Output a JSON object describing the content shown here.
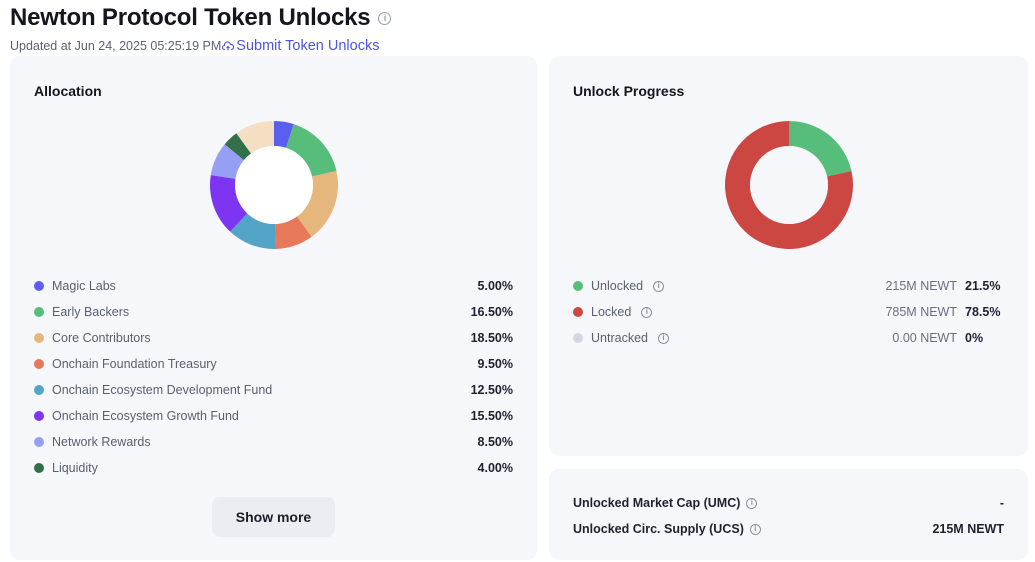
{
  "header": {
    "title": "Newton Protocol Token Unlocks",
    "info_icon": "info-circle-icon",
    "updated": "Updated at Jun 24, 2025 05:25:19 PM",
    "submit_icon": "cloud-upload-icon",
    "submit_label": "Submit Token Unlocks"
  },
  "allocation": {
    "title": "Allocation",
    "items": [
      {
        "label": "Magic Labs",
        "value": "5.00%",
        "pct": 5.0,
        "color": "#5b5ff0"
      },
      {
        "label": "Early Backers",
        "value": "16.50%",
        "pct": 16.5,
        "color": "#57bd7b"
      },
      {
        "label": "Core Contributors",
        "value": "18.50%",
        "pct": 18.5,
        "color": "#e6b77d"
      },
      {
        "label": "Onchain Foundation Treasury",
        "value": "9.50%",
        "pct": 9.5,
        "color": "#e7785a"
      },
      {
        "label": "Onchain Ecosystem Development Fund",
        "value": "12.50%",
        "pct": 12.5,
        "color": "#53a4c6"
      },
      {
        "label": "Onchain Ecosystem Growth Fund",
        "value": "15.50%",
        "pct": 15.5,
        "color": "#7e35f1"
      },
      {
        "label": "Network Rewards",
        "value": "8.50%",
        "pct": 8.5,
        "color": "#95a0f5"
      },
      {
        "label": "Liquidity",
        "value": "4.00%",
        "pct": 4.0,
        "color": "#32704a"
      }
    ],
    "hidden_remainder": {
      "pct": 10.0,
      "color": "#f4dfc2"
    },
    "show_more_label": "Show more"
  },
  "unlock_progress": {
    "title": "Unlock Progress",
    "items": [
      {
        "label": "Unlocked",
        "amount": "215M NEWT",
        "pct_label": "21.5%",
        "pct": 21.5,
        "color": "#57bd7b"
      },
      {
        "label": "Locked",
        "amount": "785M NEWT",
        "pct_label": "78.5%",
        "pct": 78.5,
        "color": "#cc4741"
      },
      {
        "label": "Untracked",
        "amount": "0.00 NEWT",
        "pct_label": "0%",
        "pct": 0,
        "color": "#d4d6e1"
      }
    ]
  },
  "stats": {
    "rows": [
      {
        "label": "Unlocked Market Cap (UMC)",
        "value": "-"
      },
      {
        "label": "Unlocked Circ. Supply (UCS)",
        "value": "215M NEWT"
      }
    ]
  },
  "chart_data": [
    {
      "type": "pie",
      "title": "Allocation",
      "categories": [
        "Magic Labs",
        "Early Backers",
        "Core Contributors",
        "Onchain Foundation Treasury",
        "Onchain Ecosystem Development Fund",
        "Onchain Ecosystem Growth Fund",
        "Network Rewards",
        "Liquidity",
        "Other (hidden)"
      ],
      "values": [
        5.0,
        16.5,
        18.5,
        9.5,
        12.5,
        15.5,
        8.5,
        4.0,
        10.0
      ],
      "donut": true
    },
    {
      "type": "pie",
      "title": "Unlock Progress",
      "categories": [
        "Unlocked",
        "Locked",
        "Untracked"
      ],
      "values": [
        21.5,
        78.5,
        0
      ],
      "donut": true
    }
  ]
}
